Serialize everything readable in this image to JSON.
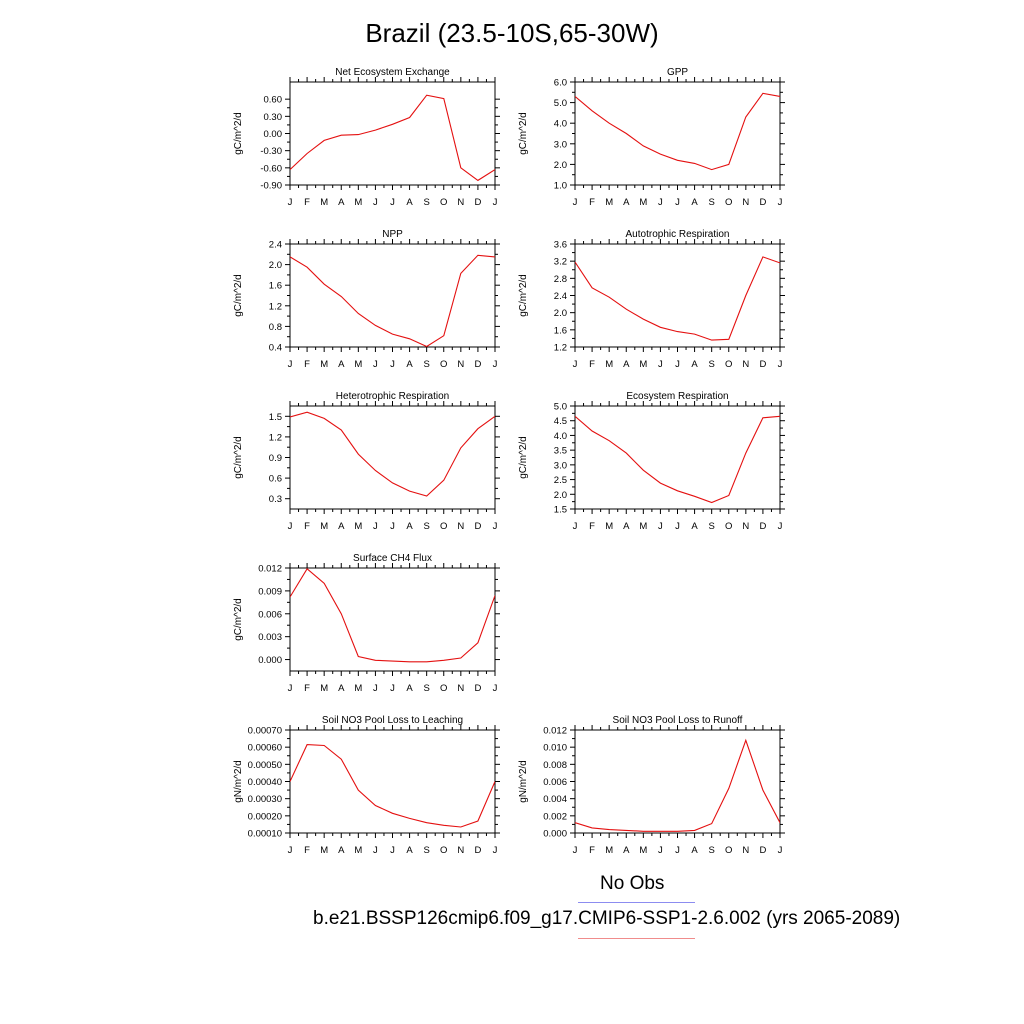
{
  "title": "Brazil (23.5-10S,65-30W)",
  "legend": {
    "obs_label": "No Obs",
    "case_label": "b.e21.BSSP126cmip6.f09_g17.CMIP6-SSP1-2.6.002 (yrs 2065-2089)",
    "obs_color": "#8c8cf0",
    "case_color": "#f08c8c"
  },
  "chart_data": [
    {
      "type": "line",
      "title": "Net Ecosystem Exchange",
      "ylabel": "gC/m^2/d",
      "x": [
        "J",
        "F",
        "M",
        "A",
        "M",
        "J",
        "J",
        "A",
        "S",
        "O",
        "N",
        "D",
        "J"
      ],
      "ylim": [
        -0.9,
        0.9
      ],
      "yticks": [
        "-0.90",
        "-0.60",
        "-0.30",
        "0.00",
        "0.30",
        "0.60"
      ],
      "series": [
        {
          "values": [
            -0.63,
            -0.35,
            -0.12,
            -0.03,
            -0.02,
            0.06,
            0.16,
            0.28,
            0.67,
            0.61,
            -0.6,
            -0.82,
            -0.63
          ]
        }
      ],
      "line_color": "#e41010"
    },
    {
      "type": "line",
      "title": "GPP",
      "ylabel": "gC/m^2/d",
      "x": [
        "J",
        "F",
        "M",
        "A",
        "M",
        "J",
        "J",
        "A",
        "S",
        "O",
        "N",
        "D",
        "J"
      ],
      "ylim": [
        1.0,
        6.0
      ],
      "yticks": [
        "1.0",
        "2.0",
        "3.0",
        "4.0",
        "5.0",
        "6.0"
      ],
      "series": [
        {
          "values": [
            5.3,
            4.6,
            4.0,
            3.5,
            2.9,
            2.5,
            2.2,
            2.05,
            1.75,
            2.0,
            4.3,
            5.45,
            5.3
          ]
        }
      ],
      "line_color": "#e41010"
    },
    {
      "type": "line",
      "title": "NPP",
      "ylabel": "gC/m^2/d",
      "x": [
        "J",
        "F",
        "M",
        "A",
        "M",
        "J",
        "J",
        "A",
        "S",
        "O",
        "N",
        "D",
        "J"
      ],
      "ylim": [
        0.4,
        2.4
      ],
      "yticks": [
        "0.4",
        "0.8",
        "1.2",
        "1.6",
        "2.0",
        "2.4"
      ],
      "series": [
        {
          "values": [
            2.15,
            1.95,
            1.62,
            1.38,
            1.05,
            0.82,
            0.65,
            0.56,
            0.41,
            0.62,
            1.83,
            2.18,
            2.15
          ]
        }
      ],
      "line_color": "#e41010"
    },
    {
      "type": "line",
      "title": "Autotrophic Respiration",
      "ylabel": "gC/m^2/d",
      "x": [
        "J",
        "F",
        "M",
        "A",
        "M",
        "J",
        "J",
        "A",
        "S",
        "O",
        "N",
        "D",
        "J"
      ],
      "ylim": [
        1.2,
        3.6
      ],
      "yticks": [
        "1.2",
        "1.6",
        "2.0",
        "2.4",
        "2.8",
        "3.2",
        "3.6"
      ],
      "series": [
        {
          "values": [
            3.18,
            2.58,
            2.36,
            2.08,
            1.85,
            1.66,
            1.56,
            1.5,
            1.36,
            1.38,
            2.4,
            3.3,
            3.16
          ]
        }
      ],
      "line_color": "#e41010"
    },
    {
      "type": "line",
      "title": "Heterotrophic Respiration",
      "ylabel": "gC/m^2/d",
      "x": [
        "J",
        "F",
        "M",
        "A",
        "M",
        "J",
        "J",
        "A",
        "S",
        "O",
        "N",
        "D",
        "J"
      ],
      "ylim": [
        0.15,
        1.65
      ],
      "yticks": [
        "0.3",
        "0.6",
        "0.9",
        "1.2",
        "1.5"
      ],
      "series": [
        {
          "values": [
            1.49,
            1.56,
            1.47,
            1.3,
            0.95,
            0.71,
            0.53,
            0.41,
            0.34,
            0.57,
            1.04,
            1.32,
            1.5
          ]
        }
      ],
      "line_color": "#e41010"
    },
    {
      "type": "line",
      "title": "Ecosystem Respiration",
      "ylabel": "gC/m^2/d",
      "x": [
        "J",
        "F",
        "M",
        "A",
        "M",
        "J",
        "J",
        "A",
        "S",
        "O",
        "N",
        "D",
        "J"
      ],
      "ylim": [
        1.5,
        5.0
      ],
      "yticks": [
        "1.5",
        "2.0",
        "2.5",
        "3.0",
        "3.5",
        "4.0",
        "4.5",
        "5.0"
      ],
      "series": [
        {
          "values": [
            4.65,
            4.15,
            3.82,
            3.4,
            2.82,
            2.38,
            2.12,
            1.93,
            1.72,
            1.96,
            3.4,
            4.6,
            4.65
          ]
        }
      ],
      "line_color": "#e41010"
    },
    {
      "type": "line",
      "title": "Surface CH4 Flux",
      "ylabel": "gC/m^2/d",
      "x": [
        "J",
        "F",
        "M",
        "A",
        "M",
        "J",
        "J",
        "A",
        "S",
        "O",
        "N",
        "D",
        "J"
      ],
      "ylim": [
        -0.0015,
        0.012
      ],
      "yticks": [
        "0.000",
        "0.003",
        "0.006",
        "0.009",
        "0.012"
      ],
      "series": [
        {
          "values": [
            0.0082,
            0.0119,
            0.01,
            0.006,
            0.0004,
            -0.0001,
            -0.0002,
            -0.0003,
            -0.0003,
            -0.0001,
            0.0002,
            0.0022,
            0.0084
          ]
        }
      ],
      "line_color": "#e41010"
    },
    {
      "type": "line",
      "title": "Soil NO3 Pool Loss to Leaching",
      "ylabel": "gN/m^2/d",
      "x": [
        "J",
        "F",
        "M",
        "A",
        "M",
        "J",
        "J",
        "A",
        "S",
        "O",
        "N",
        "D",
        "J"
      ],
      "ylim": [
        0.0001,
        0.0007
      ],
      "yticks": [
        "0.00010",
        "0.00020",
        "0.00030",
        "0.00040",
        "0.00050",
        "0.00060",
        "0.00070"
      ],
      "series": [
        {
          "values": [
            0.0004,
            0.000615,
            0.00061,
            0.00053,
            0.00035,
            0.00026,
            0.000215,
            0.000185,
            0.00016,
            0.000145,
            0.000135,
            0.00017,
            0.0004
          ]
        }
      ],
      "line_color": "#e41010"
    },
    {
      "type": "line",
      "title": "Soil NO3 Pool Loss to Runoff",
      "ylabel": "gN/m^2/d",
      "x": [
        "J",
        "F",
        "M",
        "A",
        "M",
        "J",
        "J",
        "A",
        "S",
        "O",
        "N",
        "D",
        "J"
      ],
      "ylim": [
        0.0,
        0.012
      ],
      "yticks": [
        "0.000",
        "0.002",
        "0.004",
        "0.006",
        "0.008",
        "0.010",
        "0.012"
      ],
      "series": [
        {
          "values": [
            0.0012,
            0.0006,
            0.0004,
            0.0003,
            0.0002,
            0.0002,
            0.0002,
            0.0003,
            0.0011,
            0.0052,
            0.0108,
            0.005,
            0.0012
          ]
        }
      ],
      "line_color": "#e41010"
    }
  ]
}
